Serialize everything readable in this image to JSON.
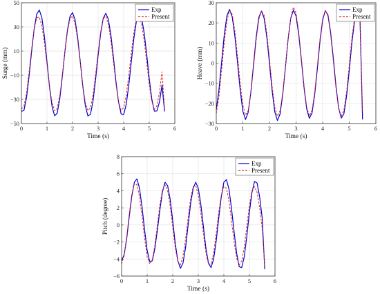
{
  "chart_data": [
    {
      "type": "line",
      "xlabel": "Time (s)",
      "ylabel": "Surge (mm)",
      "xlim": [
        0,
        6
      ],
      "ylim": [
        -50,
        50
      ],
      "xticks": [
        0,
        1,
        2,
        3,
        4,
        5,
        6
      ],
      "yticks": [
        -50,
        -30,
        -10,
        10,
        30,
        50
      ],
      "grid": true,
      "legend_position": "top-right",
      "series": [
        {
          "name": "Exp",
          "color": "#0000cc",
          "style": "solid",
          "x": [
            0.0,
            0.1,
            0.2,
            0.3,
            0.4,
            0.5,
            0.6,
            0.7,
            0.8,
            0.9,
            1.0,
            1.1,
            1.2,
            1.3,
            1.4,
            1.5,
            1.6,
            1.7,
            1.8,
            1.9,
            2.0,
            2.1,
            2.2,
            2.3,
            2.4,
            2.5,
            2.6,
            2.7,
            2.8,
            2.9,
            3.0,
            3.1,
            3.2,
            3.3,
            3.4,
            3.5,
            3.6,
            3.7,
            3.8,
            3.9,
            4.0,
            4.1,
            4.2,
            4.3,
            4.4,
            4.5,
            4.6,
            4.7,
            4.8,
            4.9,
            5.0,
            5.1,
            5.2,
            5.3,
            5.4,
            5.5,
            5.6
          ],
          "y": [
            -40.0,
            -39.1,
            -28.6,
            -10.7,
            9.9,
            28.6,
            40.7,
            44.0,
            37.6,
            22.1,
            1.2,
            -19.9,
            -36.1,
            -43.6,
            -41.4,
            -29.6,
            -11.1,
            9.4,
            27.3,
            38.7,
            41.9,
            35.8,
            21.3,
            1.7,
            -18.8,
            -35.2,
            -43.7,
            -42.4,
            -31.6,
            -13.8,
            6.4,
            24.6,
            37.1,
            41.3,
            36.4,
            23.3,
            4.7,
            -15.6,
            -32.3,
            -42.0,
            -42.6,
            -34.1,
            -18.3,
            1.3,
            20.6,
            35.0,
            41.3,
            37.7,
            25.3,
            7.5,
            -12.8,
            -29.7,
            -39.7,
            -39.6,
            -32.2,
            -18.2,
            -40.0
          ]
        },
        {
          "name": "Present",
          "color": "#dd2222",
          "style": "dashed",
          "x": [
            0.0,
            0.1,
            0.2,
            0.3,
            0.4,
            0.5,
            0.6,
            0.7,
            0.8,
            0.9,
            1.0,
            1.1,
            1.2,
            1.3,
            1.4,
            1.5,
            1.6,
            1.7,
            1.8,
            1.9,
            2.0,
            2.1,
            2.2,
            2.3,
            2.4,
            2.5,
            2.6,
            2.7,
            2.8,
            2.9,
            3.0,
            3.1,
            3.2,
            3.3,
            3.4,
            3.5,
            3.6,
            3.7,
            3.8,
            3.9,
            4.0,
            4.1,
            4.2,
            4.3,
            4.4,
            4.5,
            4.6,
            4.7,
            4.8,
            4.9,
            5.0,
            5.1,
            5.2,
            5.3,
            5.4,
            5.5,
            5.6
          ],
          "y": [
            -38.0,
            -35.5,
            -24.6,
            -7.2,
            12.1,
            28.3,
            37.5,
            38.2,
            30.6,
            16.6,
            -1.2,
            -19.1,
            -32.9,
            -39.5,
            -37.4,
            -26.9,
            -10.0,
            9.1,
            26.1,
            36.9,
            39.1,
            32.4,
            18.9,
            0.7,
            -18.1,
            -32.6,
            -39.3,
            -37.0,
            -26.3,
            -9.7,
            9.3,
            26.1,
            36.9,
            38.9,
            32.4,
            18.9,
            0.9,
            -17.7,
            -32.1,
            -39.0,
            -36.9,
            -26.5,
            -10.3,
            8.8,
            25.7,
            36.6,
            38.9,
            32.3,
            18.9,
            0.9,
            -17.6,
            -31.8,
            -38.2,
            -35.4,
            -24.2,
            -7.2,
            -38.0
          ]
        }
      ]
    },
    {
      "type": "line",
      "xlabel": "Time (s)",
      "ylabel": "Heave (mm)",
      "xlim": [
        0,
        6
      ],
      "ylim": [
        -30,
        30
      ],
      "xticks": [
        0,
        1,
        2,
        3,
        4,
        5,
        6
      ],
      "yticks": [
        -30,
        -20,
        -10,
        0,
        10,
        20,
        30
      ],
      "grid": true,
      "legend_position": "top-right",
      "series": [
        {
          "name": "Exp",
          "color": "#0000cc",
          "style": "solid",
          "x": [
            0.0,
            0.1,
            0.2,
            0.3,
            0.4,
            0.5,
            0.6,
            0.7,
            0.8,
            0.9,
            1.0,
            1.1,
            1.2,
            1.3,
            1.4,
            1.5,
            1.6,
            1.7,
            1.8,
            1.9,
            2.0,
            2.1,
            2.2,
            2.3,
            2.4,
            2.5,
            2.6,
            2.7,
            2.8,
            2.9,
            3.0,
            3.1,
            3.2,
            3.3,
            3.4,
            3.5,
            3.6,
            3.7,
            3.8,
            3.9,
            4.0,
            4.1,
            4.2,
            4.3,
            4.4,
            4.5,
            4.6,
            4.7,
            4.8,
            4.9,
            5.0,
            5.1,
            5.2,
            5.3,
            5.4,
            5.5
          ],
          "y": [
            -23.0,
            -13.4,
            0.3,
            13.9,
            23.5,
            26.7,
            23.0,
            13.4,
            0.3,
            -13.4,
            -23.9,
            -28.0,
            -24.5,
            -14.6,
            -1.0,
            12.8,
            22.7,
            25.9,
            22.3,
            13.0,
            0.0,
            -13.6,
            -24.2,
            -28.5,
            -25.2,
            -15.5,
            -2.1,
            11.8,
            22.3,
            26.3,
            23.4,
            14.4,
            1.6,
            -12.1,
            -22.7,
            -27.4,
            -24.8,
            -15.7,
            -2.9,
            10.9,
            21.4,
            26.1,
            23.9,
            15.3,
            2.6,
            -11.3,
            -22.2,
            -27.3,
            -25.1,
            -16.3,
            -3.7,
            10.3,
            21.0,
            26.0,
            24.0,
            -28.0
          ]
        },
        {
          "name": "Present",
          "color": "#dd2222",
          "style": "dashed",
          "x": [
            0.0,
            0.1,
            0.2,
            0.3,
            0.4,
            0.5,
            0.6,
            0.7,
            0.8,
            0.9,
            1.0,
            1.1,
            1.2,
            1.3,
            1.4,
            1.5,
            1.6,
            1.7,
            1.8,
            1.9,
            2.0,
            2.1,
            2.2,
            2.3,
            2.4,
            2.5,
            2.6,
            2.7,
            2.8,
            2.9,
            3.0,
            3.1,
            3.2,
            3.3,
            3.4,
            3.5,
            3.6,
            3.7,
            3.8,
            3.9,
            4.0,
            4.1,
            4.2,
            4.3,
            4.4,
            4.5,
            4.6,
            4.7,
            4.8,
            4.9,
            5.0,
            5.1,
            5.2,
            5.3,
            5.4,
            5.5
          ],
          "y": [
            -25.0,
            -16.9,
            -3.6,
            10.2,
            21.0,
            26.1,
            24.3,
            16.1,
            3.6,
            -10.2,
            -20.9,
            -25.8,
            -23.6,
            -15.1,
            -2.4,
            11.3,
            21.6,
            26.1,
            23.7,
            15.1,
            2.3,
            -11.4,
            -22.0,
            -26.3,
            -23.6,
            -14.7,
            -1.7,
            11.9,
            22.3,
            27.8,
            24.9,
            15.7,
            2.3,
            -11.3,
            -21.8,
            -26.2,
            -23.4,
            -14.5,
            -1.4,
            12.1,
            22.0,
            26.3,
            23.3,
            14.3,
            1.1,
            -12.4,
            -22.3,
            -26.4,
            -23.2,
            -14.1,
            -0.9,
            12.6,
            22.4,
            26.6,
            23.6,
            -24.0
          ]
        }
      ]
    },
    {
      "type": "line",
      "xlabel": "Time (s)",
      "ylabel": "Pitch (degree)",
      "xlim": [
        0,
        6
      ],
      "ylim": [
        -6,
        8
      ],
      "xticks": [
        0,
        1,
        2,
        3,
        4,
        5,
        6
      ],
      "yticks": [
        -6,
        -4,
        -2,
        0,
        2,
        4,
        6,
        8
      ],
      "grid": true,
      "legend_position": "top-right",
      "series": [
        {
          "name": "Exp",
          "color": "#0000cc",
          "style": "solid",
          "x": [
            0.0,
            0.1,
            0.2,
            0.3,
            0.4,
            0.5,
            0.6,
            0.7,
            0.8,
            0.9,
            1.0,
            1.1,
            1.2,
            1.3,
            1.4,
            1.5,
            1.6,
            1.7,
            1.8,
            1.9,
            2.0,
            2.1,
            2.2,
            2.3,
            2.4,
            2.5,
            2.6,
            2.7,
            2.8,
            2.9,
            3.0,
            3.1,
            3.2,
            3.3,
            3.4,
            3.5,
            3.6,
            3.7,
            3.8,
            3.9,
            4.0,
            4.1,
            4.2,
            4.3,
            4.4,
            4.5,
            4.6,
            4.7,
            4.8,
            4.9,
            5.0,
            5.1,
            5.2,
            5.3,
            5.4,
            5.5,
            5.6
          ],
          "y": [
            -4.2,
            -3.5,
            -1.6,
            1.0,
            3.4,
            5.0,
            5.4,
            4.3,
            2.1,
            -0.6,
            -3.0,
            -4.3,
            -4.2,
            -2.8,
            -0.6,
            1.8,
            3.9,
            5.0,
            4.6,
            3.0,
            0.5,
            -2.2,
            -4.2,
            -5.1,
            -4.5,
            -2.7,
            -0.1,
            2.5,
            4.3,
            5.0,
            4.3,
            2.4,
            -0.2,
            -2.8,
            -4.5,
            -5.0,
            -4.0,
            -1.9,
            0.8,
            3.3,
            5.0,
            5.3,
            4.2,
            1.9,
            -0.8,
            -3.3,
            -4.9,
            -5.0,
            -3.7,
            -1.3,
            1.5,
            3.8,
            5.1,
            4.9,
            3.3,
            0.8,
            -5.2
          ]
        },
        {
          "name": "Present",
          "color": "#dd2222",
          "style": "dashed",
          "x": [
            0.0,
            0.1,
            0.2,
            0.3,
            0.4,
            0.5,
            0.6,
            0.7,
            0.8,
            0.9,
            1.0,
            1.1,
            1.2,
            1.3,
            1.4,
            1.5,
            1.6,
            1.7,
            1.8,
            1.9,
            2.0,
            2.1,
            2.2,
            2.3,
            2.4,
            2.5,
            2.6,
            2.7,
            2.8,
            2.9,
            3.0,
            3.1,
            3.2,
            3.3,
            3.4,
            3.5,
            3.6,
            3.7,
            3.8,
            3.9,
            4.0,
            4.1,
            4.2,
            4.3,
            4.4,
            4.5,
            4.6,
            4.7,
            4.8,
            4.9,
            5.0,
            5.1,
            5.2,
            5.3,
            5.4,
            5.5,
            5.6
          ],
          "y": [
            -4.6,
            -3.6,
            -1.4,
            1.3,
            3.6,
            4.8,
            4.7,
            3.3,
            1.0,
            -1.6,
            -3.7,
            -4.6,
            -4.1,
            -2.4,
            0.0,
            2.4,
            4.1,
            4.7,
            4.0,
            2.2,
            -0.3,
            -2.7,
            -4.3,
            -4.7,
            -3.7,
            -1.7,
            0.8,
            3.1,
            4.5,
            4.6,
            3.5,
            1.4,
            -1.1,
            -3.3,
            -4.6,
            -4.6,
            -3.3,
            -1.0,
            1.5,
            3.5,
            4.5,
            4.3,
            2.8,
            0.5,
            -2.0,
            -3.9,
            -4.7,
            -4.2,
            -2.6,
            -0.1,
            2.3,
            4.0,
            4.5,
            3.8,
            2.0,
            -0.4,
            -4.8
          ]
        }
      ]
    }
  ]
}
